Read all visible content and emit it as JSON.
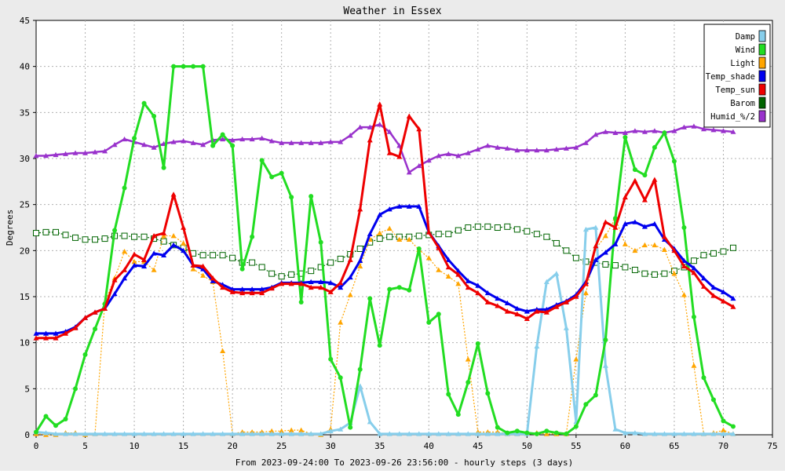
{
  "chart_data": {
    "type": "line",
    "title": "Weather in Essex",
    "xlabel": "From 2023-09-24:00 To 2023-09-26 23:56:00 - hourly steps (3 days)",
    "ylabel": "Degrees",
    "xlim": [
      0,
      75
    ],
    "ylim": [
      0,
      45
    ],
    "xticks": [
      0,
      5,
      10,
      15,
      20,
      25,
      30,
      35,
      40,
      45,
      50,
      55,
      60,
      65,
      70,
      75
    ],
    "yticks": [
      0,
      5,
      10,
      15,
      20,
      25,
      30,
      35,
      40,
      45
    ],
    "grid": true,
    "legend_position": "top-right",
    "series": [
      {
        "name": "Damp",
        "color": "#87ceeb",
        "marker": "triangle",
        "values": [
          0.3,
          0.2,
          0.1,
          0.1,
          0.1,
          0.1,
          0.1,
          0.1,
          0.1,
          0.1,
          0.1,
          0.1,
          0.1,
          0.1,
          0.1,
          0.1,
          0.1,
          0.1,
          0.1,
          0.1,
          0.1,
          0.1,
          0.1,
          0.1,
          0.1,
          0.1,
          0.1,
          0.1,
          0.1,
          0.1,
          0.4,
          0.6,
          1.3,
          5.3,
          1.4,
          0.1,
          0.1,
          0.1,
          0.1,
          0.1,
          0.1,
          0.1,
          0.1,
          0.1,
          0.1,
          0.1,
          0.1,
          0.1,
          0.1,
          0.1,
          0.1,
          9.6,
          16.6,
          17.5,
          11.6,
          1.4,
          22.3,
          22.5,
          7.5,
          0.6,
          0.2,
          0.2,
          0.1,
          0.1,
          0.1,
          0.1,
          0.1,
          0.1,
          0.1,
          0.1,
          0.1,
          0.1
        ]
      },
      {
        "name": "Wind",
        "color": "#22dd22",
        "marker": "circle",
        "values": [
          0.3,
          2.0,
          1.0,
          1.7,
          5.0,
          8.7,
          11.5,
          14.2,
          22.2,
          26.8,
          32.2,
          36.0,
          34.6,
          29.0,
          40.0,
          40.0,
          40.0,
          40.0,
          31.4,
          32.6,
          31.4,
          18.0,
          21.5,
          29.8,
          28.0,
          28.4,
          25.8,
          14.4,
          25.9,
          20.9,
          8.2,
          6.2,
          0.8,
          7.1,
          14.8,
          9.7,
          15.8,
          16.0,
          15.7,
          20.2,
          12.2,
          13.1,
          4.4,
          2.2,
          5.7,
          9.9,
          4.5,
          0.8,
          0.2,
          0.4,
          0.2,
          0.1,
          0.4,
          0.2,
          0.1,
          0.9,
          3.3,
          4.3,
          10.3,
          23.5,
          32.3,
          28.8,
          28.2,
          31.2,
          32.8,
          29.7,
          22.5,
          12.8,
          6.2,
          3.8,
          1.5,
          0.9
        ]
      },
      {
        "name": "Light",
        "color": "#ffa500",
        "marker": "triangle",
        "values": [
          0.1,
          0.0,
          0.0,
          0.2,
          0.2,
          0.0,
          0.1,
          14.4,
          17.0,
          19.9,
          18.8,
          18.8,
          17.9,
          21.6,
          21.6,
          20.8,
          18.0,
          17.3,
          16.6,
          9.1,
          0.1,
          0.3,
          0.3,
          0.3,
          0.4,
          0.4,
          0.5,
          0.5,
          0.1,
          0.0,
          0.6,
          12.2,
          15.2,
          18.3,
          21.2,
          21.9,
          22.4,
          21.2,
          21.2,
          20.1,
          19.2,
          17.9,
          17.2,
          16.4,
          8.2,
          0.3,
          0.3,
          0.3,
          0.1,
          0.1,
          0.2,
          0.2,
          0.1,
          0.1,
          0.1,
          8.2,
          15.4,
          20.2,
          21.6,
          23.5,
          20.7,
          20.0,
          20.6,
          20.6,
          20.1,
          17.5,
          15.2,
          7.5,
          0.1,
          0.2,
          0.5,
          0.1
        ]
      },
      {
        "name": "Temp_shade",
        "color": "#0000ee",
        "marker": "triangle",
        "values": [
          11.0,
          11.0,
          11.0,
          11.2,
          11.7,
          12.7,
          13.3,
          13.7,
          15.3,
          17.0,
          18.4,
          18.3,
          19.7,
          19.5,
          20.6,
          20.0,
          18.4,
          18.0,
          16.7,
          16.3,
          15.8,
          15.8,
          15.8,
          15.8,
          16.0,
          16.5,
          16.5,
          16.5,
          16.6,
          16.6,
          16.5,
          16.0,
          17.1,
          18.9,
          21.8,
          23.9,
          24.5,
          24.8,
          24.8,
          24.8,
          22.0,
          20.5,
          19.0,
          17.8,
          16.7,
          16.2,
          15.4,
          14.8,
          14.3,
          13.7,
          13.4,
          13.6,
          13.6,
          14.1,
          14.5,
          15.2,
          16.6,
          19.0,
          19.8,
          20.7,
          22.9,
          23.1,
          22.6,
          22.9,
          21.2,
          20.2,
          18.9,
          18.1,
          17.0,
          16.0,
          15.5,
          14.8
        ]
      },
      {
        "name": "Temp_sun",
        "color": "#ee0000",
        "marker": "triangle",
        "values": [
          10.5,
          10.5,
          10.5,
          11.0,
          11.6,
          12.7,
          13.3,
          13.7,
          16.8,
          17.9,
          19.6,
          19.0,
          21.6,
          21.9,
          26.1,
          22.5,
          18.4,
          18.3,
          17.0,
          16.0,
          15.5,
          15.4,
          15.4,
          15.4,
          15.9,
          16.4,
          16.4,
          16.4,
          16.0,
          16.0,
          15.5,
          16.5,
          19.0,
          24.5,
          32.0,
          35.9,
          30.6,
          30.2,
          34.6,
          33.2,
          22.0,
          20.3,
          18.2,
          17.4,
          16.0,
          15.4,
          14.4,
          14.0,
          13.4,
          13.1,
          12.6,
          13.4,
          13.3,
          13.9,
          14.4,
          15.0,
          16.4,
          20.5,
          23.1,
          22.5,
          25.8,
          27.6,
          25.5,
          27.7,
          21.5,
          20.0,
          18.3,
          17.6,
          16.1,
          15.1,
          14.5,
          13.9
        ]
      },
      {
        "name": "Barom",
        "color": "#006400",
        "marker": "square",
        "values": [
          21.9,
          22.0,
          22.0,
          21.7,
          21.4,
          21.2,
          21.2,
          21.3,
          21.6,
          21.6,
          21.5,
          21.5,
          21.3,
          21.0,
          20.6,
          20.3,
          19.7,
          19.5,
          19.5,
          19.5,
          19.2,
          18.7,
          18.7,
          18.2,
          17.5,
          17.2,
          17.4,
          17.5,
          17.8,
          18.2,
          18.7,
          19.1,
          19.6,
          20.2,
          20.9,
          21.3,
          21.5,
          21.5,
          21.5,
          21.6,
          21.7,
          21.8,
          21.8,
          22.2,
          22.5,
          22.6,
          22.6,
          22.5,
          22.6,
          22.3,
          22.1,
          21.8,
          21.5,
          20.8,
          20.0,
          19.2,
          18.8,
          18.7,
          18.5,
          18.4,
          18.2,
          17.9,
          17.5,
          17.4,
          17.5,
          17.8,
          18.2,
          18.9,
          19.5,
          19.7,
          19.9,
          20.3
        ]
      },
      {
        "name": "Humid_%/2",
        "color": "#9932cc",
        "marker": "triangle",
        "values": [
          30.3,
          30.3,
          30.4,
          30.5,
          30.6,
          30.6,
          30.7,
          30.8,
          31.5,
          32.1,
          31.8,
          31.5,
          31.2,
          31.6,
          31.8,
          31.9,
          31.7,
          31.5,
          32.0,
          32.1,
          32.0,
          32.1,
          32.1,
          32.2,
          31.9,
          31.7,
          31.7,
          31.7,
          31.7,
          31.7,
          31.8,
          31.8,
          32.5,
          33.4,
          33.4,
          33.7,
          32.9,
          31.4,
          28.5,
          29.2,
          29.8,
          30.3,
          30.5,
          30.3,
          30.6,
          31.0,
          31.4,
          31.2,
          31.1,
          30.9,
          30.9,
          30.9,
          30.9,
          31.0,
          31.1,
          31.2,
          31.7,
          32.6,
          32.9,
          32.8,
          32.8,
          33.0,
          32.9,
          33.0,
          32.8,
          33.0,
          33.4,
          33.5,
          33.2,
          33.1,
          33.0,
          32.9
        ]
      }
    ]
  }
}
